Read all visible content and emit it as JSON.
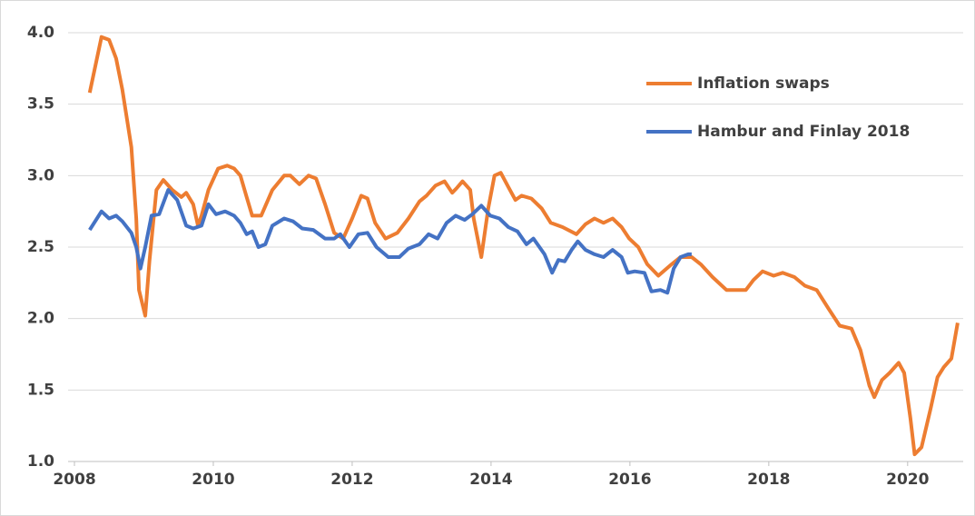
{
  "chart_data": {
    "type": "line",
    "xlim": [
      2008,
      2020.8
    ],
    "xticks": [
      2008,
      2010,
      2012,
      2014,
      2016,
      2018,
      2020
    ],
    "ylim": [
      1,
      4
    ],
    "yticks": [
      {
        "value": 1,
        "label": "1.0"
      },
      {
        "value": 1.5,
        "label": "1.5"
      },
      {
        "value": 2,
        "label": "2.0"
      },
      {
        "value": 2.5,
        "label": "2.5"
      },
      {
        "value": 3,
        "label": "3.0"
      },
      {
        "value": 3.5,
        "label": "3.5"
      },
      {
        "value": 4,
        "label": "4.0"
      }
    ],
    "grid": true,
    "legend": "upper right",
    "series": [
      {
        "name": "Inflation swaps",
        "color": "#ed7d31",
        "x": [
          2008.22,
          2008.39,
          2008.5,
          2008.6,
          2008.69,
          2008.82,
          2008.89,
          2008.93,
          2009.02,
          2009.08,
          2009.18,
          2009.28,
          2009.41,
          2009.54,
          2009.61,
          2009.71,
          2009.78,
          2009.83,
          2009.93,
          2010.07,
          2010.2,
          2010.3,
          2010.39,
          2010.48,
          2010.56,
          2010.69,
          2010.85,
          2011.02,
          2011.11,
          2011.24,
          2011.37,
          2011.48,
          2011.61,
          2011.74,
          2011.87,
          2012.0,
          2012.13,
          2012.22,
          2012.33,
          2012.48,
          2012.65,
          2012.81,
          2012.97,
          2013.07,
          2013.2,
          2013.33,
          2013.44,
          2013.5,
          2013.59,
          2013.7,
          2013.75,
          2013.86,
          2013.96,
          2014.05,
          2014.14,
          2014.25,
          2014.35,
          2014.44,
          2014.58,
          2014.73,
          2014.86,
          2015.03,
          2015.23,
          2015.36,
          2015.49,
          2015.62,
          2015.75,
          2015.88,
          2015.99,
          2016.12,
          2016.25,
          2016.41,
          2016.6,
          2016.73,
          2016.89,
          2017.02,
          2017.19,
          2017.39,
          2017.54,
          2017.67,
          2017.78,
          2017.91,
          2018.07,
          2018.2,
          2018.37,
          2018.52,
          2018.69,
          2018.86,
          2019.02,
          2019.19,
          2019.32,
          2019.45,
          2019.52,
          2019.63,
          2019.74,
          2019.87,
          2019.95,
          2020.04,
          2020.1,
          2020.2,
          2020.33,
          2020.43,
          2020.52,
          2020.63,
          2020.72
        ],
        "values": [
          3.58,
          3.97,
          3.95,
          3.82,
          3.6,
          3.2,
          2.7,
          2.2,
          2.02,
          2.4,
          2.9,
          2.97,
          2.9,
          2.85,
          2.88,
          2.8,
          2.65,
          2.72,
          2.9,
          3.05,
          3.07,
          3.05,
          3.0,
          2.85,
          2.72,
          2.72,
          2.9,
          3.0,
          3.0,
          2.94,
          3.0,
          2.98,
          2.8,
          2.6,
          2.56,
          2.7,
          2.86,
          2.84,
          2.67,
          2.56,
          2.6,
          2.7,
          2.82,
          2.86,
          2.93,
          2.96,
          2.88,
          2.91,
          2.96,
          2.9,
          2.7,
          2.43,
          2.77,
          3.0,
          3.02,
          2.92,
          2.83,
          2.86,
          2.84,
          2.77,
          2.67,
          2.64,
          2.59,
          2.66,
          2.7,
          2.67,
          2.7,
          2.64,
          2.56,
          2.5,
          2.38,
          2.3,
          2.38,
          2.43,
          2.43,
          2.38,
          2.29,
          2.2,
          2.2,
          2.2,
          2.27,
          2.33,
          2.3,
          2.32,
          2.29,
          2.23,
          2.2,
          2.07,
          1.95,
          1.93,
          1.78,
          1.53,
          1.45,
          1.57,
          1.62,
          1.69,
          1.62,
          1.3,
          1.05,
          1.1,
          1.37,
          1.59,
          1.66,
          1.72,
          1.97
        ]
      },
      {
        "name": "Hambur and Finlay 2018",
        "color": "#4472c4",
        "x": [
          2008.22,
          2008.39,
          2008.5,
          2008.6,
          2008.69,
          2008.82,
          2008.89,
          2008.95,
          2009.02,
          2009.11,
          2009.22,
          2009.35,
          2009.48,
          2009.61,
          2009.71,
          2009.83,
          2009.93,
          2010.04,
          2010.17,
          2010.3,
          2010.39,
          2010.48,
          2010.56,
          2010.65,
          2010.75,
          2010.85,
          2011.02,
          2011.15,
          2011.28,
          2011.44,
          2011.61,
          2011.74,
          2011.83,
          2011.96,
          2012.09,
          2012.22,
          2012.35,
          2012.52,
          2012.68,
          2012.81,
          2012.97,
          2013.1,
          2013.23,
          2013.36,
          2013.49,
          2013.62,
          2013.73,
          2013.86,
          2013.99,
          2014.12,
          2014.25,
          2014.38,
          2014.51,
          2014.61,
          2014.77,
          2014.88,
          2014.97,
          2015.06,
          2015.16,
          2015.25,
          2015.36,
          2015.49,
          2015.62,
          2015.75,
          2015.88,
          2015.97,
          2016.07,
          2016.21,
          2016.31,
          2016.44,
          2016.54,
          2016.63,
          2016.73,
          2016.84,
          2016.89
        ],
        "values": [
          2.62,
          2.75,
          2.7,
          2.72,
          2.68,
          2.6,
          2.5,
          2.35,
          2.5,
          2.72,
          2.73,
          2.9,
          2.83,
          2.65,
          2.63,
          2.65,
          2.8,
          2.73,
          2.75,
          2.72,
          2.67,
          2.59,
          2.61,
          2.5,
          2.52,
          2.65,
          2.7,
          2.68,
          2.63,
          2.62,
          2.56,
          2.56,
          2.59,
          2.5,
          2.59,
          2.6,
          2.5,
          2.43,
          2.43,
          2.49,
          2.52,
          2.59,
          2.56,
          2.67,
          2.72,
          2.69,
          2.73,
          2.79,
          2.72,
          2.7,
          2.64,
          2.61,
          2.52,
          2.56,
          2.45,
          2.32,
          2.41,
          2.4,
          2.48,
          2.54,
          2.48,
          2.45,
          2.43,
          2.48,
          2.43,
          2.32,
          2.33,
          2.32,
          2.19,
          2.2,
          2.18,
          2.35,
          2.43,
          2.45,
          2.45
        ]
      }
    ]
  }
}
